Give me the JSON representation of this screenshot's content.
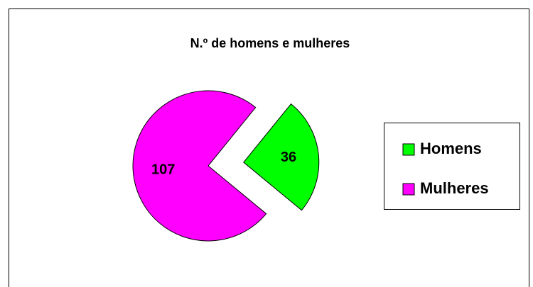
{
  "chart_data": {
    "type": "pie",
    "title": "N.º de homens e mulheres",
    "categories": [
      "Homens",
      "Mulheres"
    ],
    "values": [
      36,
      107
    ],
    "colors": [
      "#00ff00",
      "#ff00ff"
    ],
    "legend": "right"
  }
}
